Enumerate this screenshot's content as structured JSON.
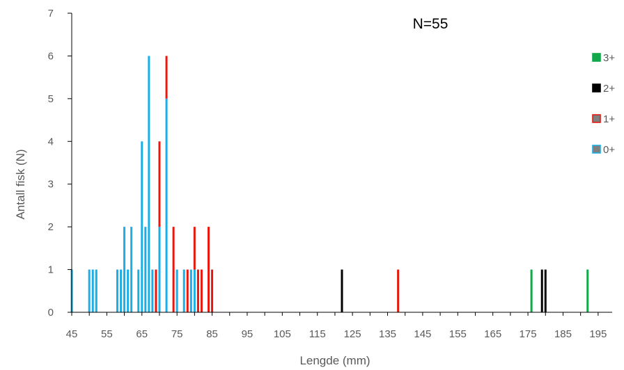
{
  "chart_data": {
    "type": "bar",
    "stacked": true,
    "xlabel": "Lengde (mm)",
    "ylabel": "Antall fisk (N)",
    "annotation": "N=55",
    "xlim": [
      45,
      199
    ],
    "ylim": [
      0,
      7
    ],
    "x_ticks": [
      45,
      55,
      65,
      75,
      85,
      95,
      105,
      115,
      125,
      135,
      145,
      155,
      165,
      175,
      185,
      195
    ],
    "y_ticks": [
      0,
      1,
      2,
      3,
      4,
      5,
      6,
      7
    ],
    "grid": false,
    "legend_position": "right",
    "series": [
      {
        "name": "0+",
        "color": "#1AAFE6",
        "points": [
          {
            "x": 45,
            "y": 1
          },
          {
            "x": 50,
            "y": 1
          },
          {
            "x": 51,
            "y": 1
          },
          {
            "x": 52,
            "y": 1
          },
          {
            "x": 58,
            "y": 1
          },
          {
            "x": 59,
            "y": 1
          },
          {
            "x": 60,
            "y": 2
          },
          {
            "x": 61,
            "y": 1
          },
          {
            "x": 62,
            "y": 2
          },
          {
            "x": 64,
            "y": 1
          },
          {
            "x": 65,
            "y": 4
          },
          {
            "x": 66,
            "y": 2
          },
          {
            "x": 67,
            "y": 6
          },
          {
            "x": 68,
            "y": 1
          },
          {
            "x": 70,
            "y": 2
          },
          {
            "x": 72,
            "y": 5
          },
          {
            "x": 75,
            "y": 1
          },
          {
            "x": 77,
            "y": 1
          },
          {
            "x": 79,
            "y": 1
          },
          {
            "x": 80,
            "y": 1
          }
        ]
      },
      {
        "name": "1+",
        "color": "#E8180F",
        "points": [
          {
            "x": 69,
            "y": 1
          },
          {
            "x": 70,
            "y": 2
          },
          {
            "x": 72,
            "y": 1
          },
          {
            "x": 74,
            "y": 2
          },
          {
            "x": 78,
            "y": 1
          },
          {
            "x": 80,
            "y": 1
          },
          {
            "x": 81,
            "y": 1
          },
          {
            "x": 82,
            "y": 1
          },
          {
            "x": 84,
            "y": 2
          },
          {
            "x": 85,
            "y": 1
          },
          {
            "x": 138,
            "y": 1
          }
        ]
      },
      {
        "name": "2+",
        "color": "#000000",
        "points": [
          {
            "x": 122,
            "y": 1
          },
          {
            "x": 179,
            "y": 1
          },
          {
            "x": 180,
            "y": 1
          }
        ]
      },
      {
        "name": "3+",
        "color": "#11A84A",
        "points": [
          {
            "x": 176,
            "y": 1
          },
          {
            "x": 192,
            "y": 1
          }
        ]
      }
    ],
    "legend": [
      {
        "label": "3+",
        "color": "#11A84A",
        "border": "#11A84A"
      },
      {
        "label": "2+",
        "color": "#000000",
        "border": "#000000"
      },
      {
        "label": "1+",
        "color": "#7F7F7F",
        "border": "#E8180F"
      },
      {
        "label": "0+",
        "color": "#7F7F7F",
        "border": "#1AAFE6"
      }
    ]
  }
}
